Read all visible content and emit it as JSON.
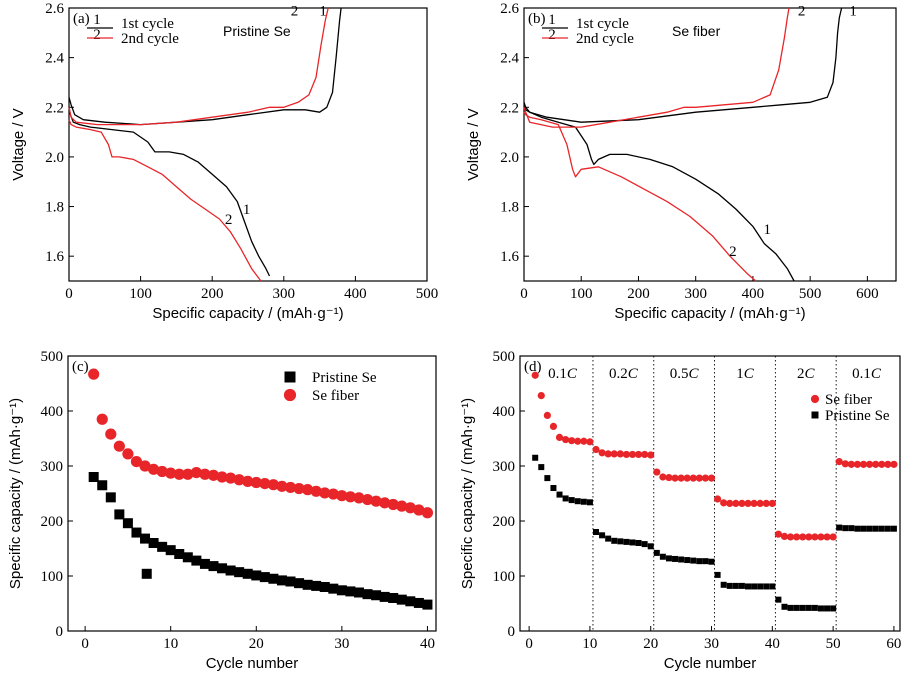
{
  "chart_data": [
    {
      "panel": "(a)",
      "type": "line",
      "title": "Pristine Se",
      "xlabel": "Specific capacity / (mAh·g⁻¹)",
      "ylabel": "Voltage / V",
      "xlim": [
        0,
        500
      ],
      "ylim": [
        1.5,
        2.6
      ],
      "xticks": [
        0,
        100,
        200,
        300,
        400,
        500
      ],
      "yticks": [
        1.6,
        1.8,
        2.0,
        2.2,
        2.4,
        2.6
      ],
      "legend": {
        "position": "top-left",
        "entries": [
          {
            "key": "1",
            "text": "1st cycle",
            "color": "#000000"
          },
          {
            "key": "2",
            "text": "2nd cycle",
            "color": "#e8262a"
          }
        ]
      },
      "series": [
        {
          "name": "1st cycle",
          "color": "#000000",
          "curves": [
            {
              "x": [
                0,
                2,
                6,
                15,
                30,
                60,
                90,
                110,
                120,
                140,
                160,
                180,
                200,
                220,
                235,
                245,
                255,
                265,
                275,
                280
              ],
              "y": [
                2.2,
                2.17,
                2.14,
                2.13,
                2.12,
                2.11,
                2.1,
                2.06,
                2.02,
                2.02,
                2.01,
                1.98,
                1.93,
                1.88,
                1.82,
                1.74,
                1.66,
                1.6,
                1.55,
                1.52
              ]
            },
            {
              "x": [
                0,
                3,
                8,
                20,
                50,
                100,
                150,
                200,
                250,
                300,
                330,
                350,
                360,
                368,
                373,
                378,
                380
              ],
              "y": [
                2.24,
                2.21,
                2.17,
                2.15,
                2.14,
                2.13,
                2.14,
                2.15,
                2.17,
                2.19,
                2.19,
                2.18,
                2.2,
                2.26,
                2.4,
                2.55,
                2.6
              ]
            }
          ]
        },
        {
          "name": "2nd cycle",
          "color": "#e8262a",
          "curves": [
            {
              "x": [
                0,
                3,
                10,
                30,
                45,
                55,
                60,
                70,
                90,
                110,
                130,
                150,
                170,
                190,
                210,
                225,
                240,
                255,
                268
              ],
              "y": [
                2.15,
                2.13,
                2.12,
                2.11,
                2.1,
                2.05,
                2.0,
                2.0,
                1.99,
                1.96,
                1.93,
                1.88,
                1.83,
                1.79,
                1.75,
                1.7,
                1.63,
                1.55,
                1.5
              ]
            },
            {
              "x": [
                0,
                3,
                10,
                40,
                100,
                150,
                200,
                250,
                280,
                300,
                320,
                335,
                345,
                352,
                358,
                362
              ],
              "y": [
                2.2,
                2.16,
                2.14,
                2.13,
                2.13,
                2.14,
                2.16,
                2.18,
                2.2,
                2.2,
                2.22,
                2.25,
                2.32,
                2.45,
                2.55,
                2.6
              ]
            }
          ]
        }
      ],
      "annotations": [
        {
          "text": "2",
          "x": 223,
          "y": 1.73
        },
        {
          "text": "1",
          "x": 248,
          "y": 1.77
        },
        {
          "text": "2",
          "x": 315,
          "y": 2.57
        },
        {
          "text": "1",
          "x": 355,
          "y": 2.57
        }
      ]
    },
    {
      "panel": "(b)",
      "type": "line",
      "title": "Se fiber",
      "xlabel": "Specific capacity / (mAh·g⁻¹)",
      "ylabel": "Voltage / V",
      "xlim": [
        0,
        650
      ],
      "ylim": [
        1.5,
        2.6
      ],
      "xticks": [
        0,
        100,
        200,
        300,
        400,
        500,
        600
      ],
      "yticks": [
        1.6,
        1.8,
        2.0,
        2.2,
        2.4,
        2.6
      ],
      "legend": {
        "position": "top-left",
        "entries": [
          {
            "key": "1",
            "text": "1st cycle",
            "color": "#000000"
          },
          {
            "key": "2",
            "text": "2nd cycle",
            "color": "#e8262a"
          }
        ]
      },
      "series": [
        {
          "name": "1st cycle",
          "color": "#000000",
          "curves": [
            {
              "x": [
                0,
                3,
                10,
                30,
                60,
                90,
                110,
                118,
                122,
                130,
                150,
                180,
                220,
                260,
                300,
                340,
                370,
                400,
                420,
                440,
                460,
                472
              ],
              "y": [
                2.2,
                2.19,
                2.18,
                2.16,
                2.14,
                2.12,
                2.05,
                1.99,
                1.97,
                1.99,
                2.01,
                2.01,
                1.99,
                1.96,
                1.91,
                1.85,
                1.79,
                1.72,
                1.65,
                1.61,
                1.55,
                1.5
              ]
            },
            {
              "x": [
                0,
                3,
                10,
                40,
                100,
                200,
                300,
                400,
                450,
                500,
                530,
                540,
                545,
                548,
                551,
                555
              ],
              "y": [
                2.22,
                2.2,
                2.18,
                2.16,
                2.14,
                2.15,
                2.18,
                2.2,
                2.21,
                2.22,
                2.24,
                2.3,
                2.4,
                2.5,
                2.56,
                2.6
              ]
            }
          ]
        },
        {
          "name": "2nd cycle",
          "color": "#e8262a",
          "curves": [
            {
              "x": [
                0,
                3,
                10,
                30,
                60,
                75,
                85,
                90,
                100,
                130,
                170,
                210,
                250,
                290,
                330,
                360,
                390,
                405
              ],
              "y": [
                2.18,
                2.17,
                2.16,
                2.15,
                2.13,
                2.05,
                1.95,
                1.92,
                1.95,
                1.96,
                1.92,
                1.87,
                1.82,
                1.76,
                1.68,
                1.6,
                1.53,
                1.5
              ]
            },
            {
              "x": [
                0,
                3,
                10,
                50,
                100,
                150,
                200,
                250,
                280,
                300,
                350,
                400,
                430,
                445,
                455,
                460,
                463
              ],
              "y": [
                2.2,
                2.18,
                2.14,
                2.12,
                2.12,
                2.14,
                2.16,
                2.18,
                2.2,
                2.2,
                2.21,
                2.22,
                2.25,
                2.35,
                2.48,
                2.56,
                2.6
              ]
            }
          ]
        }
      ],
      "annotations": [
        {
          "text": "2",
          "x": 365,
          "y": 1.6
        },
        {
          "text": "1",
          "x": 425,
          "y": 1.69
        },
        {
          "text": "2",
          "x": 485,
          "y": 2.57
        },
        {
          "text": "1",
          "x": 575,
          "y": 2.57
        }
      ]
    },
    {
      "panel": "(c)",
      "type": "scatter",
      "xlabel": "Cycle number",
      "ylabel": "Specific capacity / (mAh·g⁻¹)",
      "xlim": [
        -2,
        41
      ],
      "ylim": [
        0,
        500
      ],
      "xticks": [
        0,
        10,
        20,
        30,
        40
      ],
      "yticks": [
        0,
        100,
        200,
        300,
        400,
        500
      ],
      "legend": {
        "position": "top-right"
      },
      "series": [
        {
          "name": "Pristine Se",
          "color": "#000000",
          "marker": "square",
          "x": [
            1,
            2,
            3,
            4,
            5,
            6,
            7,
            8,
            9,
            10,
            11,
            12,
            13,
            14,
            15,
            16,
            17,
            18,
            19,
            20,
            21,
            22,
            23,
            24,
            25,
            26,
            27,
            28,
            29,
            30,
            31,
            32,
            33,
            34,
            35,
            36,
            37,
            38,
            39,
            40,
            7.2
          ],
          "y": [
            280,
            265,
            243,
            212,
            196,
            179,
            168,
            160,
            153,
            147,
            140,
            134,
            128,
            122,
            118,
            114,
            110,
            107,
            104,
            101,
            98,
            95,
            92,
            90,
            87,
            84,
            82,
            80,
            77,
            74,
            72,
            70,
            67,
            65,
            62,
            60,
            57,
            54,
            51,
            48,
            104
          ]
        },
        {
          "name": "Se fiber",
          "color": "#e8262a",
          "marker": "circle",
          "x": [
            1,
            2,
            3,
            4,
            5,
            6,
            7,
            8,
            9,
            10,
            11,
            12,
            13,
            14,
            15,
            16,
            17,
            18,
            19,
            20,
            21,
            22,
            23,
            24,
            25,
            26,
            27,
            28,
            29,
            30,
            31,
            32,
            33,
            34,
            35,
            36,
            37,
            38,
            39,
            40
          ],
          "y": [
            467,
            385,
            358,
            336,
            322,
            308,
            300,
            294,
            290,
            287,
            285,
            285,
            288,
            285,
            283,
            280,
            278,
            275,
            272,
            270,
            268,
            266,
            263,
            261,
            259,
            257,
            254,
            251,
            249,
            246,
            244,
            242,
            239,
            236,
            233,
            230,
            227,
            224,
            220,
            215
          ]
        }
      ]
    },
    {
      "panel": "(d)",
      "type": "scatter",
      "xlabel": "Cycle number",
      "ylabel": "Specific capacity / (mAh·g⁻¹)",
      "xlim": [
        -1.5,
        61
      ],
      "ylim": [
        0,
        500
      ],
      "xticks": [
        0,
        10,
        20,
        30,
        40,
        50,
        60
      ],
      "yticks": [
        0,
        100,
        200,
        300,
        400,
        500
      ],
      "legend": {
        "position": "right"
      },
      "rate_labels": [
        {
          "num": "0.1",
          "unit": "C",
          "cx": 5.5
        },
        {
          "num": "0.2",
          "unit": "C",
          "cx": 15.5
        },
        {
          "num": "0.5",
          "unit": "C",
          "cx": 25.5
        },
        {
          "num": "1",
          "unit": "C",
          "cx": 35.5
        },
        {
          "num": "2",
          "unit": "C",
          "cx": 45.5
        },
        {
          "num": "0.1",
          "unit": "C",
          "cx": 55.5
        }
      ],
      "dividers": [
        10.5,
        20.5,
        30.5,
        40.5,
        50.5
      ],
      "series": [
        {
          "name": "Se fiber",
          "color": "#e8262a",
          "marker": "circle",
          "x": [
            1,
            2,
            3,
            4,
            5,
            6,
            7,
            8,
            9,
            10,
            11,
            12,
            13,
            14,
            15,
            16,
            17,
            18,
            19,
            20,
            21,
            22,
            23,
            24,
            25,
            26,
            27,
            28,
            29,
            30,
            31,
            32,
            33,
            34,
            35,
            36,
            37,
            38,
            39,
            40,
            41,
            42,
            43,
            44,
            45,
            46,
            47,
            48,
            49,
            50,
            51,
            52,
            53,
            54,
            55,
            56,
            57,
            58,
            59,
            60
          ],
          "y": [
            465,
            428,
            392,
            372,
            352,
            348,
            346,
            345,
            345,
            344,
            330,
            324,
            322,
            322,
            322,
            321,
            321,
            321,
            321,
            320,
            289,
            280,
            279,
            278,
            278,
            278,
            278,
            278,
            278,
            278,
            240,
            233,
            232,
            232,
            232,
            232,
            232,
            232,
            232,
            232,
            176,
            172,
            171,
            171,
            171,
            171,
            171,
            171,
            171,
            171,
            308,
            304,
            303,
            303,
            303,
            303,
            303,
            303,
            303,
            303
          ]
        },
        {
          "name": "Pristine Se",
          "color": "#000000",
          "marker": "square",
          "x": [
            1,
            2,
            3,
            4,
            5,
            6,
            7,
            8,
            9,
            10,
            11,
            12,
            13,
            14,
            15,
            16,
            17,
            18,
            19,
            20,
            21,
            22,
            23,
            24,
            25,
            26,
            27,
            28,
            29,
            30,
            31,
            32,
            33,
            34,
            35,
            36,
            37,
            38,
            39,
            40,
            41,
            42,
            43,
            44,
            45,
            46,
            47,
            48,
            49,
            50,
            51,
            52,
            53,
            54,
            55,
            56,
            57,
            58,
            59,
            60
          ],
          "y": [
            315,
            298,
            278,
            260,
            248,
            241,
            238,
            236,
            235,
            234,
            180,
            174,
            168,
            164,
            163,
            162,
            161,
            160,
            158,
            154,
            142,
            135,
            132,
            131,
            130,
            129,
            128,
            127,
            127,
            126,
            102,
            84,
            82,
            82,
            82,
            81,
            81,
            81,
            81,
            81,
            57,
            44,
            42,
            42,
            42,
            42,
            42,
            41,
            41,
            41,
            188,
            187,
            187,
            186,
            186,
            186,
            186,
            186,
            186,
            186
          ]
        }
      ]
    }
  ]
}
